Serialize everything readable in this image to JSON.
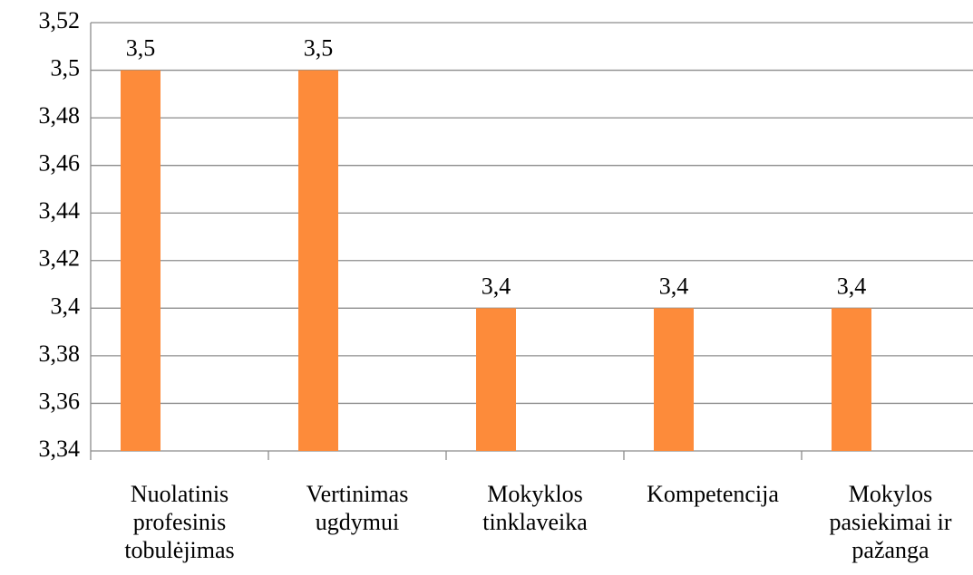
{
  "chart_data": {
    "type": "bar",
    "categories": [
      "Nuolatinis profesinis tobulėjimas",
      "Vertinimas ugdymui",
      "Mokyklos tinklaveika",
      "Kompetencija",
      "Mokylos pasiekimai ir pažanga"
    ],
    "values": [
      3.5,
      3.5,
      3.4,
      3.4,
      3.4
    ],
    "value_labels": [
      "3,5",
      "3,5",
      "3,4",
      "3,4",
      "3,4"
    ],
    "color": "#fd8b3a",
    "ylim": [
      3.34,
      3.52
    ],
    "yticks": [
      {
        "value": 3.34,
        "label": "3,34"
      },
      {
        "value": 3.36,
        "label": "3,36"
      },
      {
        "value": 3.38,
        "label": "3,38"
      },
      {
        "value": 3.4,
        "label": "3,4"
      },
      {
        "value": 3.42,
        "label": "3,42"
      },
      {
        "value": 3.44,
        "label": "3,44"
      },
      {
        "value": 3.46,
        "label": "3,46"
      },
      {
        "value": 3.48,
        "label": "3,48"
      },
      {
        "value": 3.5,
        "label": "3,5"
      },
      {
        "value": 3.52,
        "label": "3,52"
      }
    ],
    "grid": true
  }
}
